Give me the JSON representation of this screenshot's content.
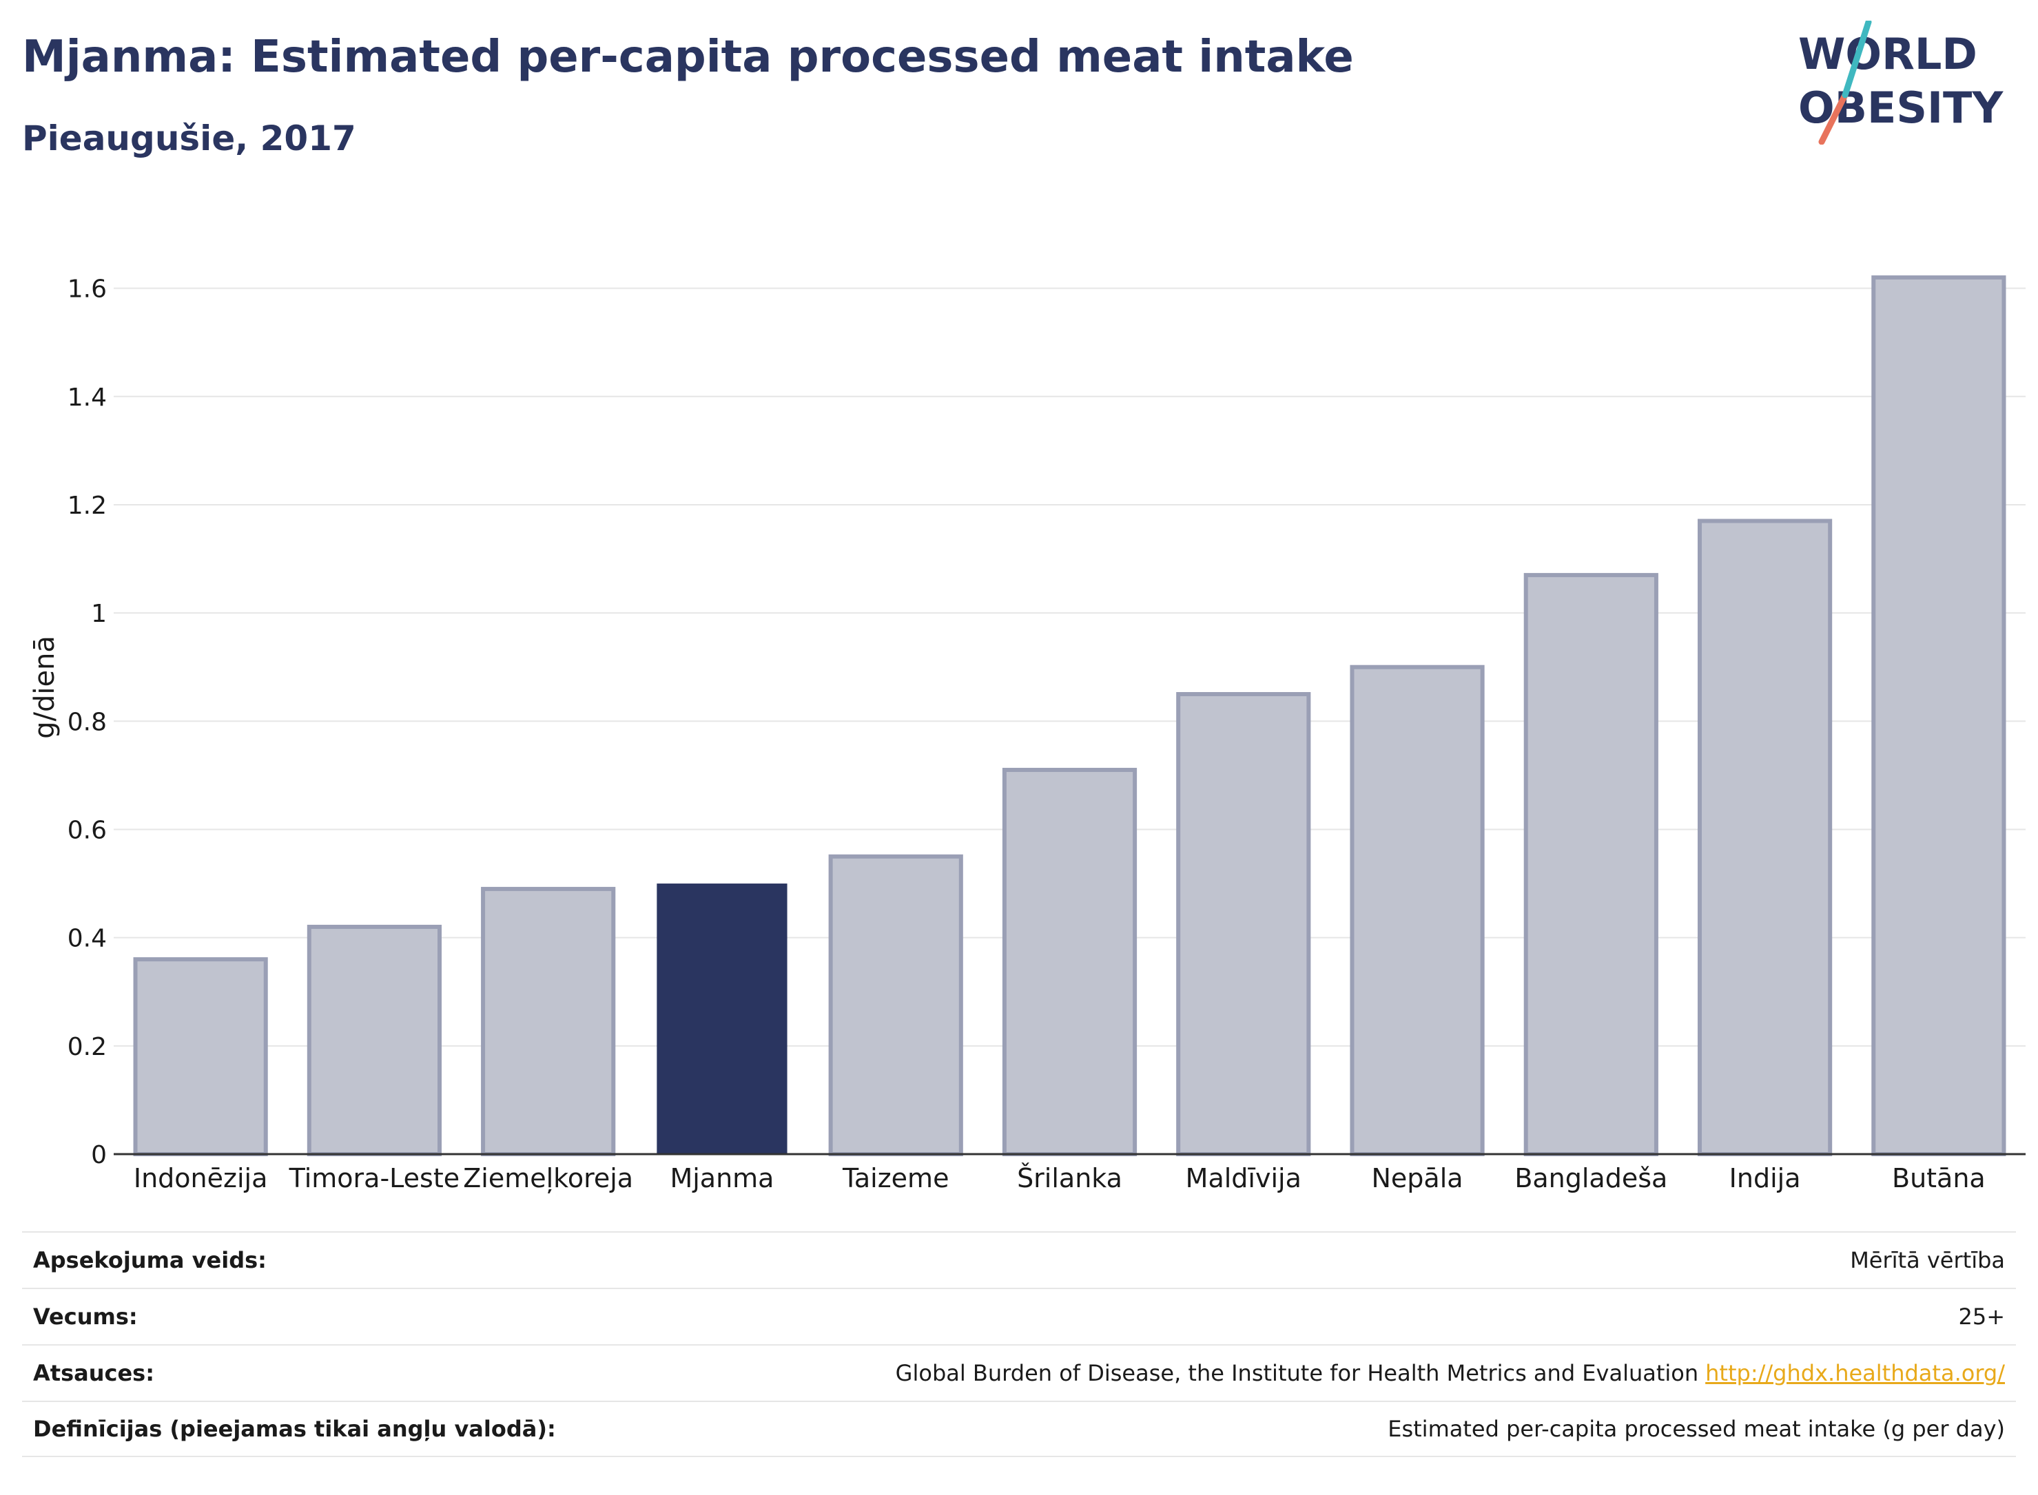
{
  "header": {
    "title": "Mjanma: Estimated per-capita processed meat intake",
    "subtitle": "Pieaugušie, 2017"
  },
  "logo": {
    "line1": "WORLD",
    "line2": "OBESITY"
  },
  "chart_data": {
    "type": "bar",
    "ylabel": "g/dienā",
    "ylim": [
      0,
      1.7
    ],
    "yticks": [
      0,
      0.2,
      0.4,
      0.6,
      0.8,
      1,
      1.2,
      1.4,
      1.6
    ],
    "grid": true,
    "categories": [
      "Indonēzija",
      "Timora-Leste",
      "Ziemeļkoreja",
      "Mjanma",
      "Taizeme",
      "Šrilanka",
      "Maldīvija",
      "Nepāla",
      "Bangladeša",
      "Indija",
      "Butāna"
    ],
    "values": [
      0.36,
      0.42,
      0.49,
      0.5,
      0.55,
      0.71,
      0.85,
      0.9,
      1.07,
      1.17,
      1.62
    ],
    "highlight": "Mjanma",
    "colors": {
      "bar": "#c0c3cf",
      "bar_edge": "#9a9fb5",
      "highlight": "#2a3560"
    }
  },
  "meta": [
    {
      "key": "Apsekojuma veids:",
      "value": "Mērītā vērtība",
      "link": ""
    },
    {
      "key": "Vecums:",
      "value": "25+",
      "link": ""
    },
    {
      "key": "Atsauces:",
      "value": "Global Burden of Disease, the Institute for Health Metrics and Evaluation",
      "link": "http://ghdx.healthdata.org/"
    },
    {
      "key": "Definīcijas (pieejamas tikai angļu valodā):",
      "value": "Estimated per-capita processed meat intake (g per day)",
      "link": ""
    }
  ]
}
